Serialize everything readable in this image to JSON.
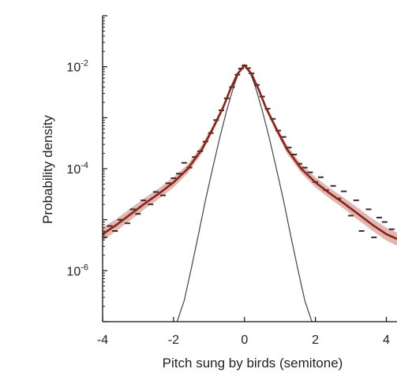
{
  "chart_data": {
    "type": "line",
    "title": "",
    "xlabel": "Pitch sung by birds (semitone)",
    "ylabel": "Probability density",
    "yscale": "log",
    "xlim": [
      -4,
      4.3
    ],
    "ylim": [
      1e-07,
      0.1
    ],
    "grid": false,
    "legend": "none",
    "x_ticks": [
      -4,
      -2,
      0,
      2,
      4
    ],
    "y_ticks": [
      0.01,
      0.0001,
      1e-06
    ],
    "x_tick_labels": [
      "-4",
      "-2",
      "0",
      "2",
      "4"
    ],
    "y_tick_labels": [
      {
        "base": "10",
        "exp": "-2"
      },
      {
        "base": "10",
        "exp": "-4"
      },
      {
        "base": "10",
        "exp": "-6"
      }
    ],
    "colors": {
      "fit_line": "#8b2418",
      "fit_band": "#d9a59d",
      "data_points": "#3a2a28",
      "gaussian": "#444444",
      "axes": "#111111"
    },
    "series": [
      {
        "role": "fit",
        "x": [
          -4.0,
          -3.6,
          -3.2,
          -2.8,
          -2.4,
          -2.0,
          -1.6,
          -1.2,
          -0.9,
          -0.6,
          -0.4,
          -0.2,
          0.0,
          0.2,
          0.4,
          0.6,
          0.9,
          1.2,
          1.6,
          2.0,
          2.4,
          2.8,
          3.2,
          3.6,
          4.0,
          4.3
        ],
        "y": [
          5.2e-06,
          8e-06,
          1.3e-05,
          2.1e-05,
          3.3e-05,
          5.4e-05,
          0.0001,
          0.00024,
          0.0006,
          0.0016,
          0.0036,
          0.0072,
          0.0107,
          0.0072,
          0.0036,
          0.0016,
          0.0006,
          0.00024,
          0.0001,
          5.4e-05,
          3.3e-05,
          2.1e-05,
          1.3e-05,
          8e-06,
          5.2e-06,
          4.2e-06
        ]
      },
      {
        "role": "fit-band-lower",
        "x": [
          -4.0,
          -3.6,
          -3.2,
          -2.8,
          -2.4,
          -2.0,
          -1.6,
          -1.2,
          -0.9,
          -0.6,
          -0.4,
          -0.2,
          0.0,
          0.2,
          0.4,
          0.6,
          0.9,
          1.2,
          1.6,
          2.0,
          2.4,
          2.8,
          3.2,
          3.6,
          4.0,
          4.3
        ],
        "y": [
          3.9e-06,
          6.1e-06,
          1e-05,
          1.65e-05,
          2.6e-05,
          4.3e-05,
          8.2e-05,
          0.0002,
          0.00052,
          0.00142,
          0.00325,
          0.0066,
          0.0099,
          0.0066,
          0.00325,
          0.00142,
          0.00052,
          0.0002,
          8.2e-05,
          4.3e-05,
          2.6e-05,
          1.65e-05,
          1e-05,
          6.1e-06,
          3.9e-06,
          3.1e-06
        ]
      },
      {
        "role": "fit-band-upper",
        "x": [
          -4.0,
          -3.6,
          -3.2,
          -2.8,
          -2.4,
          -2.0,
          -1.6,
          -1.2,
          -0.9,
          -0.6,
          -0.4,
          -0.2,
          0.0,
          0.2,
          0.4,
          0.6,
          0.9,
          1.2,
          1.6,
          2.0,
          2.4,
          2.8,
          3.2,
          3.6,
          4.0,
          4.3
        ],
        "y": [
          7e-06,
          1.05e-05,
          1.7e-05,
          2.7e-05,
          4.2e-05,
          6.8e-05,
          0.000122,
          0.00029,
          0.00069,
          0.0018,
          0.004,
          0.0078,
          0.0115,
          0.0078,
          0.004,
          0.0018,
          0.00069,
          0.00029,
          0.000122,
          6.8e-05,
          4.2e-05,
          2.7e-05,
          1.7e-05,
          1.05e-05,
          7e-06,
          5.6e-06
        ]
      },
      {
        "role": "gaussian",
        "x": [
          -1.9,
          -1.7,
          -1.5,
          -1.3,
          -1.1,
          -0.9,
          -0.7,
          -0.5,
          -0.3,
          -0.15,
          0.0,
          0.15,
          0.3,
          0.5,
          0.7,
          0.9,
          1.1,
          1.3,
          1.5,
          1.7,
          1.9
        ],
        "y": [
          1e-07,
          2.6e-07,
          1.1e-06,
          5e-06,
          2.4e-05,
          0.0001,
          0.0004,
          0.0014,
          0.0042,
          0.008,
          0.0105,
          0.008,
          0.0042,
          0.0014,
          0.0004,
          0.0001,
          2.4e-05,
          5e-06,
          1.1e-06,
          2.6e-07,
          1e-07
        ]
      },
      {
        "role": "data",
        "x": [
          -3.95,
          -3.8,
          -3.65,
          -3.5,
          -3.3,
          -3.15,
          -3.0,
          -2.85,
          -2.65,
          -2.5,
          -2.3,
          -2.15,
          -2.0,
          -1.85,
          -1.7,
          -1.55,
          -1.4,
          -1.25,
          -1.1,
          -0.95,
          -0.8,
          -0.65,
          -0.5,
          -0.35,
          -0.2,
          -0.1,
          0.0,
          0.1,
          0.2,
          0.35,
          0.5,
          0.65,
          0.8,
          0.95,
          1.1,
          1.25,
          1.4,
          1.55,
          1.7,
          1.85,
          2.0,
          2.15,
          2.3,
          2.5,
          2.65,
          2.8,
          3.0,
          3.15,
          3.3,
          3.5,
          3.65,
          3.8,
          3.95,
          4.15
        ],
        "y": [
          4.5e-06,
          7.5e-06,
          6e-06,
          1e-05,
          8.5e-06,
          1.6e-05,
          1.3e-05,
          2.4e-05,
          2e-05,
          3.5e-05,
          3e-05,
          5.2e-05,
          6.5e-05,
          8e-05,
          0.00013,
          0.000105,
          0.00017,
          0.00022,
          0.00034,
          0.0005,
          0.0009,
          0.0014,
          0.0024,
          0.004,
          0.007,
          0.0092,
          0.0106,
          0.0094,
          0.0074,
          0.0044,
          0.0026,
          0.0015,
          0.00095,
          0.00056,
          0.00042,
          0.00026,
          0.00019,
          0.000125,
          0.000105,
          8.5e-05,
          5.5e-05,
          6.8e-05,
          3.8e-05,
          4.6e-05,
          2.6e-05,
          3.6e-05,
          1.2e-05,
          2.4e-05,
          6e-06,
          1.6e-05,
          4.5e-06,
          1.1e-05,
          9e-06,
          6.5e-06
        ]
      }
    ]
  }
}
